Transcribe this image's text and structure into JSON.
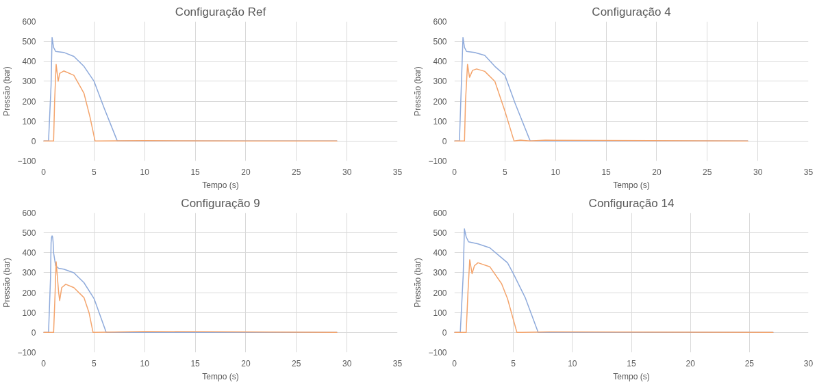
{
  "chart_data": [
    {
      "type": "line",
      "title": "Configuração Ref",
      "xlabel": "Tempo (s)",
      "ylabel": "Pressão (bar)",
      "xlim": [
        0,
        35
      ],
      "ylim": [
        -100,
        600
      ],
      "xticks": [
        0,
        5,
        10,
        15,
        20,
        25,
        30,
        35
      ],
      "yticks": [
        -100,
        0,
        100,
        200,
        300,
        400,
        500,
        600
      ],
      "grid": true,
      "series": [
        {
          "color": "#f4a46c",
          "x": [
            0,
            1,
            1.1,
            1.25,
            1.45,
            1.6,
            2,
            3,
            4,
            4.6,
            5.1,
            10,
            20,
            29
          ],
          "values": [
            0,
            0,
            200,
            385,
            300,
            340,
            352,
            330,
            240,
            120,
            0,
            2,
            0,
            0
          ]
        },
        {
          "color": "#8eaadb",
          "x": [
            0,
            0.5,
            0.75,
            0.85,
            1.0,
            1.2,
            2,
            3,
            4,
            5,
            6,
            7.3,
            29
          ],
          "values": [
            0,
            0,
            280,
            520,
            470,
            450,
            445,
            425,
            375,
            300,
            165,
            0,
            0
          ]
        }
      ]
    },
    {
      "type": "line",
      "title": "Configuração 4",
      "xlabel": "Tempo (s)",
      "ylabel": "Pressão (bar)",
      "xlim": [
        0,
        35
      ],
      "ylim": [
        -100,
        600
      ],
      "xticks": [
        0,
        5,
        10,
        15,
        20,
        25,
        30,
        35
      ],
      "yticks": [
        -100,
        0,
        100,
        200,
        300,
        400,
        500,
        600
      ],
      "grid": true,
      "series": [
        {
          "color": "#f4a46c",
          "x": [
            0,
            1,
            1.1,
            1.3,
            1.5,
            1.8,
            2.2,
            3,
            4,
            5,
            5.9,
            6.5,
            7.5,
            9,
            10,
            29
          ],
          "values": [
            0,
            0,
            200,
            385,
            320,
            355,
            362,
            350,
            300,
            150,
            0,
            5,
            0,
            5,
            4,
            0
          ]
        },
        {
          "color": "#8eaadb",
          "x": [
            0,
            0.5,
            0.85,
            1.0,
            1.2,
            2,
            3,
            4,
            5,
            6,
            7.5,
            29
          ],
          "values": [
            0,
            0,
            520,
            470,
            450,
            445,
            430,
            375,
            330,
            190,
            0,
            0
          ]
        }
      ]
    },
    {
      "type": "line",
      "title": "Configuração 9",
      "xlabel": "Tempo (s)",
      "ylabel": "Pressão (bar)",
      "xlim": [
        0,
        35
      ],
      "ylim": [
        -100,
        600
      ],
      "xticks": [
        0,
        5,
        10,
        15,
        20,
        25,
        30,
        35
      ],
      "yticks": [
        -100,
        0,
        100,
        200,
        300,
        400,
        500,
        600
      ],
      "grid": true,
      "series": [
        {
          "color": "#f4a46c",
          "x": [
            0,
            1,
            1.15,
            1.25,
            1.5,
            1.6,
            1.8,
            2.2,
            3,
            4,
            4.5,
            4.9,
            10,
            29
          ],
          "values": [
            0,
            0,
            200,
            355,
            200,
            160,
            225,
            242,
            225,
            175,
            100,
            0,
            5,
            0
          ]
        },
        {
          "color": "#8eaadb",
          "x": [
            0,
            0.5,
            0.7,
            0.75,
            0.8,
            0.85,
            0.9,
            0.95,
            1.0,
            1.2,
            1.5,
            2,
            3,
            4,
            5,
            6.2,
            29
          ],
          "values": [
            0,
            0,
            280,
            450,
            478,
            485,
            480,
            455,
            400,
            335,
            322,
            318,
            300,
            250,
            170,
            0,
            0
          ]
        }
      ]
    },
    {
      "type": "line",
      "title": "Configuração 14",
      "xlabel": "Tempo (s)",
      "ylabel": "Pressão (bar)",
      "xlim": [
        0,
        30
      ],
      "ylim": [
        -100,
        600
      ],
      "xticks": [
        0,
        5,
        10,
        15,
        20,
        25,
        30
      ],
      "yticks": [
        -100,
        0,
        100,
        200,
        300,
        400,
        500,
        600
      ],
      "grid": true,
      "series": [
        {
          "color": "#f4a46c",
          "x": [
            0,
            1,
            1.15,
            1.3,
            1.5,
            1.7,
            2,
            3,
            4,
            4.5,
            5.3,
            8,
            27
          ],
          "values": [
            0,
            0,
            200,
            365,
            295,
            335,
            350,
            330,
            245,
            170,
            0,
            3,
            0
          ]
        },
        {
          "color": "#8eaadb",
          "x": [
            0,
            0.5,
            0.75,
            0.85,
            1.0,
            1.2,
            2,
            3,
            4,
            4.5,
            5,
            6,
            7.1,
            27
          ],
          "values": [
            0,
            0,
            290,
            520,
            480,
            455,
            445,
            425,
            375,
            350,
            295,
            175,
            0,
            0
          ]
        }
      ]
    }
  ]
}
